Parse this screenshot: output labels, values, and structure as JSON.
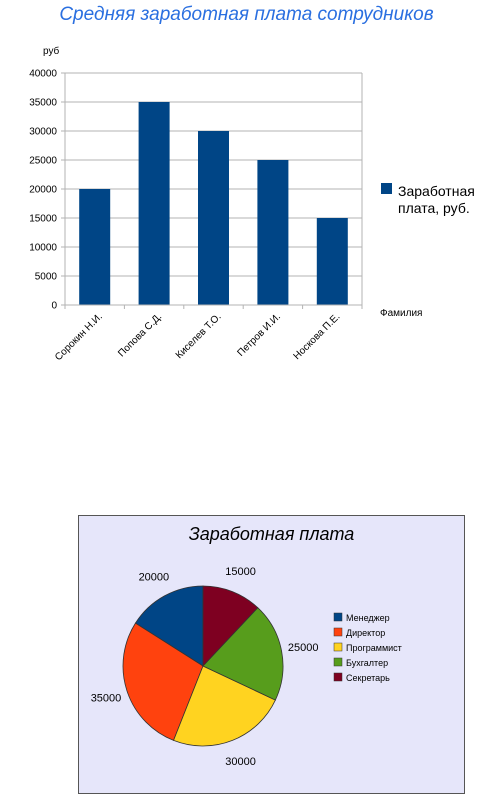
{
  "chart_data": [
    {
      "type": "bar",
      "title": "Средняя заработная плата сотрудников",
      "ylabel": "руб",
      "xlabel": "Фамилия",
      "categories": [
        "Сорокин Н.И.",
        "Попова С.Д.",
        "Киселев Т.О.",
        "Петров И.И.",
        "Носкова П.Е."
      ],
      "series": [
        {
          "name": "Заработная плата, руб.",
          "values": [
            20000,
            35000,
            30000,
            25000,
            15000
          ]
        }
      ],
      "ylim": [
        0,
        40000
      ],
      "yticks": [
        0,
        5000,
        10000,
        15000,
        20000,
        25000,
        30000,
        35000,
        40000
      ],
      "grid": true,
      "legend_position": "right",
      "legend_lines": [
        "Заработная",
        "плата, руб."
      ],
      "color": "#004586"
    },
    {
      "type": "pie",
      "title": "Заработная плата",
      "categories": [
        "Менеджер",
        "Директор",
        "Программист",
        "Бухгалтер",
        "Секретарь"
      ],
      "values": [
        20000,
        35000,
        30000,
        25000,
        15000
      ],
      "colors": [
        "#004586",
        "#ff420e",
        "#ffd320",
        "#579d1c",
        "#7e0021"
      ],
      "legend_position": "right",
      "background": "#e6e6fa"
    }
  ]
}
